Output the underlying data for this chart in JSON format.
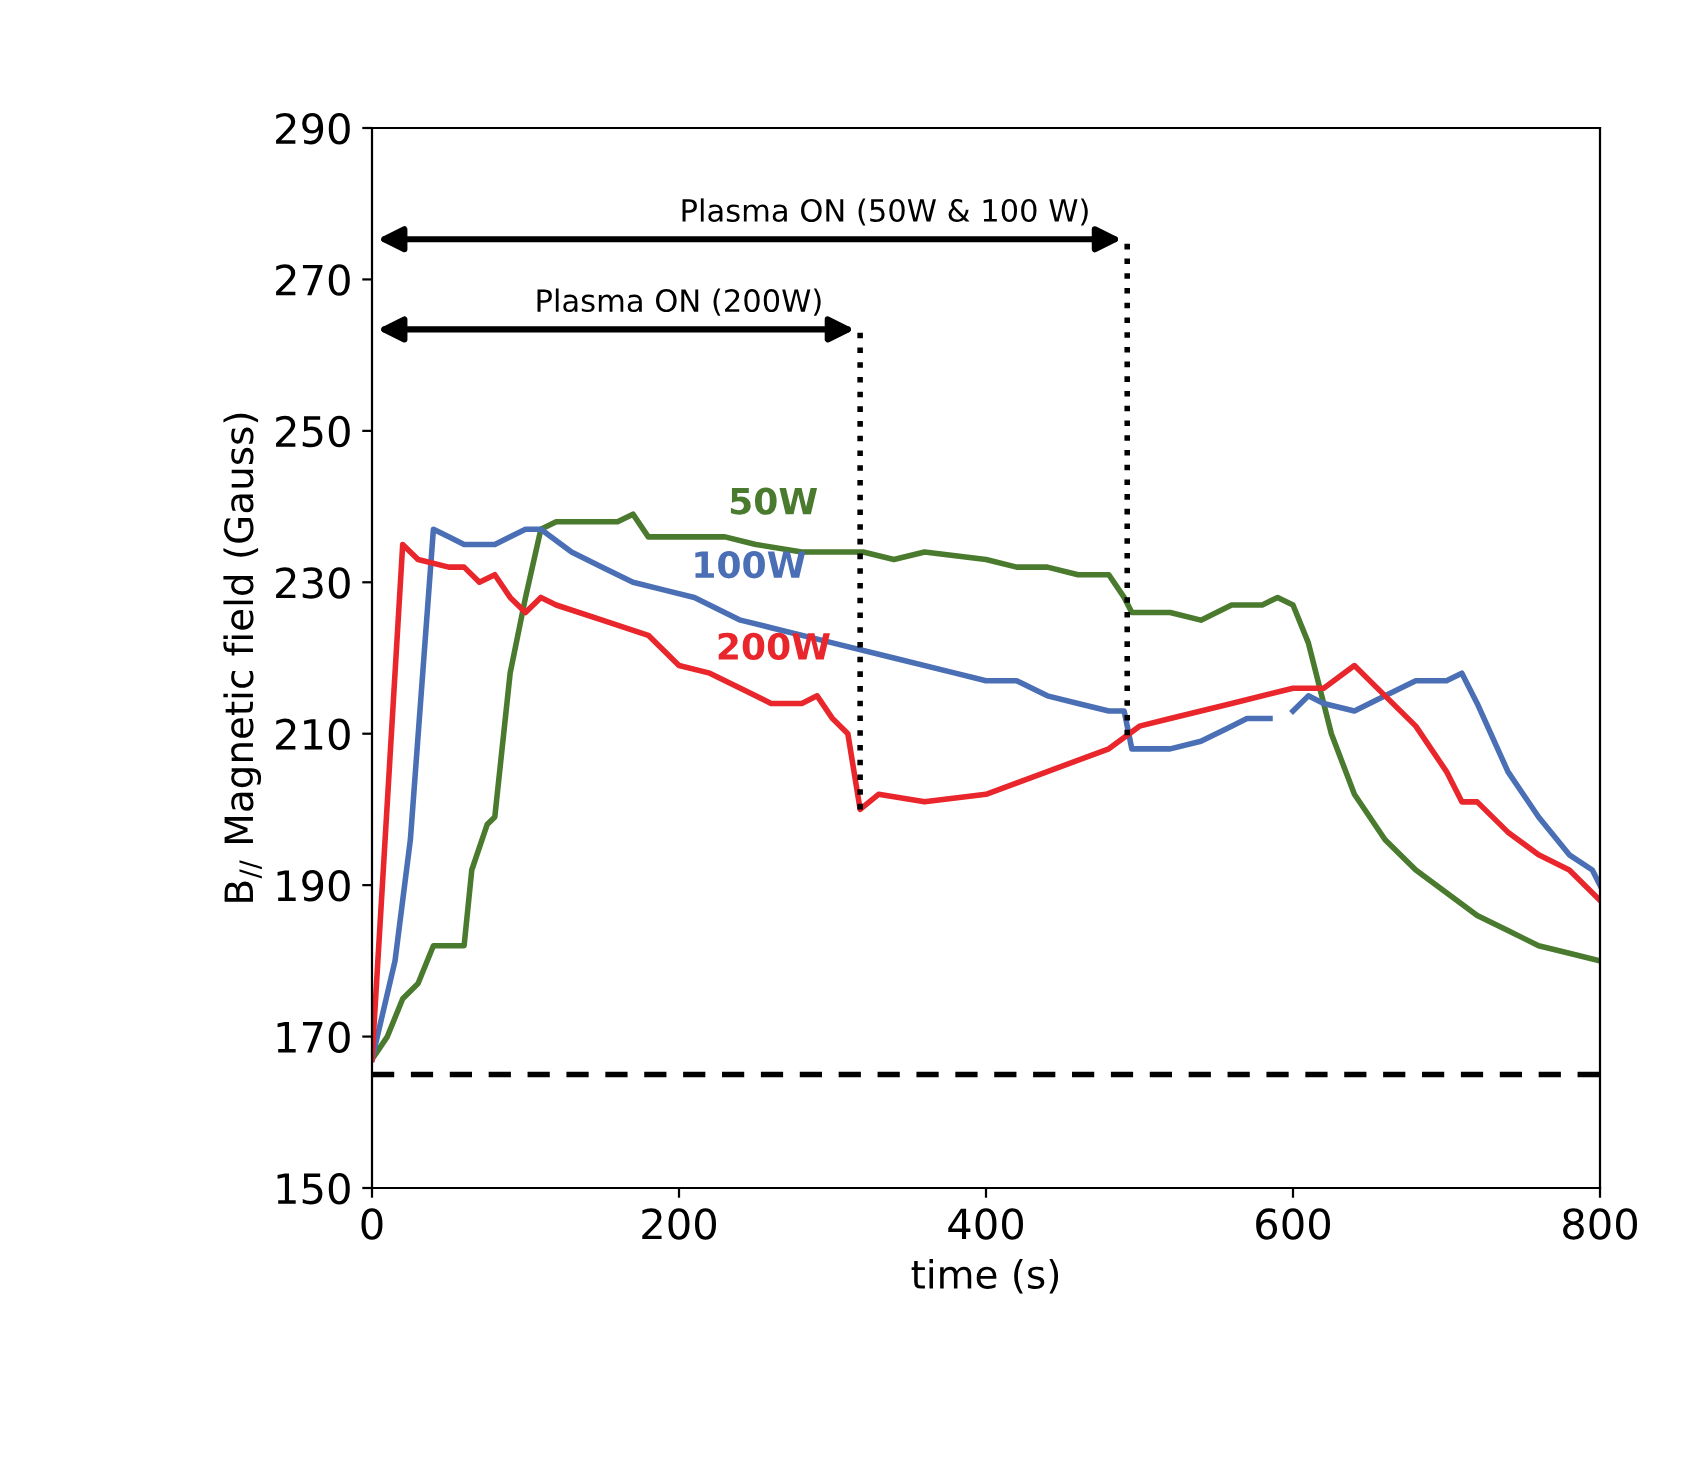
{
  "chart_data": {
    "type": "line",
    "xlabel": "time (s)",
    "ylabel": "B$_{//}$ Magnetic field (Gauss)",
    "xlim": [
      0,
      800
    ],
    "xticks": [
      0,
      200,
      400,
      600,
      800
    ],
    "ylim": [
      150,
      290
    ],
    "yticks": [
      150,
      170,
      190,
      210,
      230,
      250,
      270,
      290
    ],
    "grid": false,
    "legend": false,
    "marker": "none",
    "line_style": "solid",
    "series": [
      {
        "name": "50W",
        "color": "#4a7a2e",
        "x": [
          0,
          10,
          20,
          30,
          40,
          60,
          65,
          75,
          80,
          90,
          100,
          110,
          120,
          160,
          170,
          180,
          200,
          230,
          250,
          280,
          300,
          320,
          340,
          360,
          400,
          420,
          440,
          460,
          480,
          490,
          495,
          520,
          540,
          560,
          580,
          590,
          600,
          610,
          625,
          640,
          660,
          680,
          700,
          720,
          740,
          760,
          780,
          800
        ],
        "values": [
          167,
          170,
          175,
          177,
          182,
          182,
          192,
          198,
          199,
          218,
          228,
          237,
          238,
          238,
          239,
          236,
          236,
          236,
          235,
          234,
          234,
          234,
          233,
          234,
          233,
          232,
          232,
          231,
          231,
          228,
          226,
          226,
          225,
          227,
          227,
          228,
          227,
          222,
          210,
          202,
          196,
          192,
          189,
          186,
          184,
          182,
          181,
          180
        ]
      },
      {
        "name": "100W",
        "color": "#4a6fb5",
        "x": [
          0,
          15,
          25,
          40,
          50,
          60,
          80,
          100,
          110,
          130,
          150,
          170,
          190,
          210,
          240,
          260,
          300,
          340,
          380,
          400,
          420,
          440,
          460,
          480,
          490,
          495,
          520,
          540,
          560,
          570,
          585,
          592,
          600,
          610,
          620,
          640,
          660,
          680,
          700,
          710,
          720,
          740,
          760,
          780,
          795,
          800
        ],
        "values": [
          167,
          180,
          196,
          237,
          236,
          235,
          235,
          237,
          237,
          234,
          232,
          230,
          229,
          228,
          225,
          224,
          222,
          220,
          218,
          217,
          217,
          215,
          214,
          213,
          213,
          208,
          208,
          209,
          211,
          212,
          212,
          null,
          213,
          215,
          214,
          213,
          215,
          217,
          217,
          218,
          214,
          205,
          199,
          194,
          192,
          190
        ]
      },
      {
        "name": "200W",
        "color": "#e8262b",
        "x": [
          0,
          20,
          30,
          50,
          60,
          70,
          80,
          90,
          100,
          110,
          120,
          150,
          180,
          200,
          220,
          240,
          260,
          280,
          290,
          300,
          310,
          318,
          330,
          360,
          400,
          440,
          480,
          500,
          520,
          560,
          600,
          620,
          640,
          660,
          680,
          700,
          710,
          720,
          740,
          760,
          780,
          800
        ],
        "values": [
          167,
          235,
          233,
          232,
          232,
          230,
          231,
          228,
          226,
          228,
          227,
          225,
          223,
          219,
          218,
          216,
          214,
          214,
          215,
          212,
          210,
          200,
          202,
          201,
          202,
          205,
          208,
          211,
          212,
          214,
          216,
          216,
          219,
          215,
          211,
          205,
          201,
          201,
          197,
          194,
          192,
          188
        ]
      }
    ],
    "ref_lines": [
      {
        "axis": "y",
        "value": 165,
        "line_style": "dashed",
        "color": "#000000"
      },
      {
        "axis": "x",
        "value": 492,
        "label": "Plasma ON (50W & 100 W)",
        "line_style": "dotted",
        "color": "#000000"
      },
      {
        "axis": "x",
        "value": 318,
        "label": "Plasma ON (200W)",
        "line_style": "dotted",
        "color": "#000000"
      }
    ]
  }
}
